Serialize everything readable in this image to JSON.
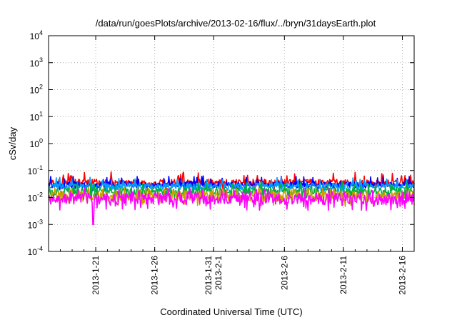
{
  "chart_data": {
    "type": "line",
    "title": "/data/run/goesPlots/archive/2013-02-16/flux/../bryn/31daysEarth.plot",
    "xlabel": "Coordinated Universal Time (UTC)",
    "ylabel": "cSv/day",
    "y_scale": "log",
    "ylim_exponent": [
      -4,
      4
    ],
    "y_ticks": [
      {
        "base": "10",
        "exp": "4"
      },
      {
        "base": "10",
        "exp": "3"
      },
      {
        "base": "10",
        "exp": "2"
      },
      {
        "base": "10",
        "exp": "1"
      },
      {
        "base": "10",
        "exp": "0"
      },
      {
        "base": "10",
        "exp": "-1"
      },
      {
        "base": "10",
        "exp": "-2"
      },
      {
        "base": "10",
        "exp": "-3"
      },
      {
        "base": "10",
        "exp": "-4"
      }
    ],
    "x_range_dates": [
      "2013-01-17",
      "2013-02-17"
    ],
    "x_ticks": [
      {
        "date": "2013-01-21",
        "labels": [
          "2013-1-21"
        ]
      },
      {
        "date": "2013-01-26",
        "labels": [
          "2013-1-26"
        ]
      },
      {
        "date": "2013-01-31",
        "labels": [
          "2013-1-31",
          "2013-2-1"
        ]
      },
      {
        "date": "2013-02-06",
        "labels": [
          "2013-2-6"
        ]
      },
      {
        "date": "2013-02-11",
        "labels": [
          "2013-2-11"
        ]
      },
      {
        "date": "2013-02-16",
        "labels": [
          "2013-2-16"
        ]
      }
    ],
    "grid": true,
    "series": [
      {
        "color": "#ff0000",
        "baseline_log10": -1.45,
        "spread": 0.13,
        "spike_log10": -1.05
      },
      {
        "color": "#0000ff",
        "baseline_log10": -1.52,
        "spread": 0.12,
        "spike_log10": -1.2
      },
      {
        "color": "#00a0ff",
        "baseline_log10": -1.58,
        "spread": 0.12,
        "spike_log10": -1.25
      },
      {
        "color": "#00b040",
        "baseline_log10": -1.78,
        "spread": 0.15,
        "spike_log10": -1.4
      },
      {
        "color": "#c8a000",
        "baseline_log10": -1.95,
        "spread": 0.2,
        "spike_log10": -1.6
      },
      {
        "color": "#ff00ff",
        "baseline_log10": -2.05,
        "spread": 0.22,
        "spike_log10": -1.65,
        "min_log10": -3.0,
        "min_date": "2013-01-20.8"
      }
    ]
  }
}
